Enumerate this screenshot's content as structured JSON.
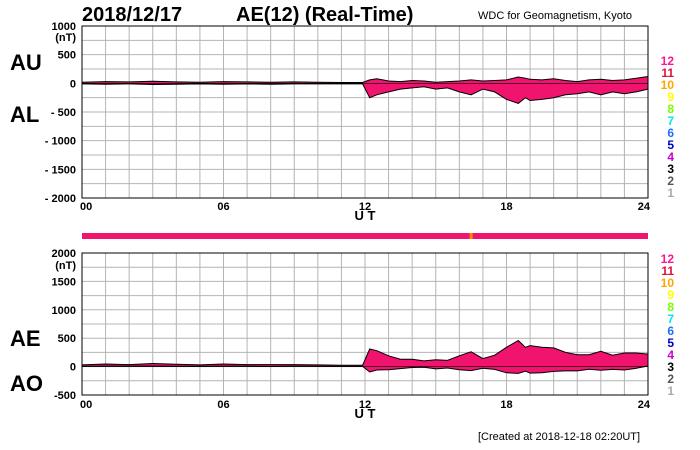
{
  "header": {
    "date": "2018/12/17",
    "title": "AE(12) (Real-Time)",
    "source": "WDC for Geomagnetism, Kyoto"
  },
  "footer": {
    "created": "[Created at 2018-12-18 02:20UT]"
  },
  "labels": {
    "au": "AU",
    "al": "AL",
    "ae": "AE",
    "ao": "AO",
    "ut": "U T",
    "unit": "(nT)"
  },
  "legend": {
    "items": [
      {
        "label": "12",
        "color": "#ff1493"
      },
      {
        "label": "11",
        "color": "#dc143c"
      },
      {
        "label": "10",
        "color": "#ffa500"
      },
      {
        "label": "9",
        "color": "#ffff00"
      },
      {
        "label": "8",
        "color": "#7cfc00"
      },
      {
        "label": "7",
        "color": "#00e5ee"
      },
      {
        "label": "6",
        "color": "#1e6fff"
      },
      {
        "label": "5",
        "color": "#0000cd"
      },
      {
        "label": "4",
        "color": "#cc00cc"
      },
      {
        "label": "3",
        "color": "#000000"
      },
      {
        "label": "2",
        "color": "#555555"
      },
      {
        "label": "1",
        "color": "#aaaaaa"
      }
    ]
  },
  "status_bar": {
    "color": "#f0146e",
    "marks": [
      16.5
    ]
  },
  "chart_data": [
    {
      "type": "area",
      "name": "AU/AL",
      "xlabel": "U T",
      "ylabel": "(nT)",
      "xlim": [
        0,
        24
      ],
      "ylim": [
        -2000,
        1000
      ],
      "yticks": [
        1000,
        500,
        0,
        -500,
        -1000,
        -1500,
        -2000
      ],
      "ytick_labels": [
        "1000",
        "500",
        "0",
        "- 500",
        "- 1000",
        "- 1500",
        "- 2000"
      ],
      "xticks": [
        0,
        6,
        12,
        18,
        24
      ],
      "xtick_labels": [
        "00",
        "06",
        "12",
        "18",
        "24"
      ],
      "grid": true,
      "fill_color": "#f0146e",
      "series": [
        {
          "name": "AU",
          "x": [
            0,
            1,
            2,
            3,
            4,
            5,
            6,
            7,
            8,
            9,
            10,
            11,
            11.9,
            12.2,
            12.5,
            13,
            13.5,
            14,
            14.5,
            15,
            15.5,
            16,
            16.5,
            17,
            17.5,
            18,
            18.5,
            18.8,
            19,
            19.5,
            20,
            20.5,
            21,
            21.5,
            22,
            22.5,
            23,
            23.5,
            24
          ],
          "y": [
            20,
            30,
            25,
            35,
            25,
            20,
            30,
            25,
            20,
            25,
            20,
            15,
            15,
            60,
            80,
            40,
            30,
            50,
            40,
            20,
            30,
            40,
            60,
            40,
            50,
            60,
            110,
            90,
            70,
            60,
            80,
            50,
            30,
            60,
            70,
            50,
            60,
            90,
            120
          ]
        },
        {
          "name": "AL",
          "x": [
            0,
            1,
            2,
            3,
            4,
            5,
            6,
            7,
            8,
            9,
            10,
            11,
            11.9,
            12.2,
            12.5,
            13,
            13.5,
            14,
            14.5,
            15,
            15.5,
            16,
            16.5,
            17,
            17.5,
            18,
            18.5,
            18.8,
            19,
            19.5,
            20,
            20.5,
            21,
            21.5,
            22,
            22.5,
            23,
            23.5,
            24
          ],
          "y": [
            -10,
            -15,
            -10,
            -20,
            -15,
            -10,
            -15,
            -10,
            -15,
            -10,
            -10,
            -10,
            -10,
            -250,
            -200,
            -150,
            -100,
            -80,
            -60,
            -100,
            -80,
            -150,
            -200,
            -100,
            -150,
            -280,
            -350,
            -250,
            -300,
            -280,
            -250,
            -200,
            -180,
            -150,
            -200,
            -150,
            -180,
            -150,
            -100
          ]
        }
      ]
    },
    {
      "type": "area",
      "name": "AE/AO",
      "xlabel": "U T",
      "ylabel": "(nT)",
      "xlim": [
        0,
        24
      ],
      "ylim": [
        -500,
        2000
      ],
      "yticks": [
        2000,
        1500,
        1000,
        500,
        0,
        -500
      ],
      "ytick_labels": [
        "2000",
        "1500",
        "1000",
        "500",
        "0",
        "-500"
      ],
      "xticks": [
        0,
        6,
        12,
        18,
        24
      ],
      "xtick_labels": [
        "00",
        "06",
        "12",
        "18",
        "24"
      ],
      "grid": true,
      "fill_color": "#f0146e",
      "series": [
        {
          "name": "AE",
          "x": [
            0,
            1,
            2,
            3,
            4,
            5,
            6,
            7,
            8,
            9,
            10,
            11,
            11.9,
            12.2,
            12.5,
            13,
            13.5,
            14,
            14.5,
            15,
            15.5,
            16,
            16.5,
            17,
            17.5,
            18,
            18.5,
            18.8,
            19,
            19.5,
            20,
            20.5,
            21,
            21.5,
            22,
            22.5,
            23,
            23.5,
            24
          ],
          "y": [
            30,
            45,
            35,
            55,
            40,
            30,
            45,
            35,
            35,
            35,
            30,
            25,
            25,
            310,
            280,
            190,
            130,
            130,
            100,
            120,
            110,
            190,
            260,
            140,
            200,
            340,
            460,
            340,
            370,
            340,
            330,
            250,
            210,
            210,
            270,
            200,
            240,
            240,
            220
          ]
        },
        {
          "name": "AO",
          "x": [
            0,
            1,
            2,
            3,
            4,
            5,
            6,
            7,
            8,
            9,
            10,
            11,
            11.9,
            12.2,
            12.5,
            13,
            13.5,
            14,
            14.5,
            15,
            15.5,
            16,
            16.5,
            17,
            17.5,
            18,
            18.5,
            18.8,
            19,
            19.5,
            20,
            20.5,
            21,
            21.5,
            22,
            22.5,
            23,
            23.5,
            24
          ],
          "y": [
            5,
            8,
            8,
            8,
            5,
            5,
            8,
            8,
            3,
            8,
            5,
            3,
            3,
            -95,
            -60,
            -55,
            -35,
            -15,
            -10,
            -40,
            -25,
            -55,
            -70,
            -30,
            -50,
            -110,
            -120,
            -80,
            -115,
            -110,
            -85,
            -75,
            -75,
            -45,
            -65,
            -50,
            -60,
            -30,
            10
          ]
        }
      ]
    }
  ]
}
